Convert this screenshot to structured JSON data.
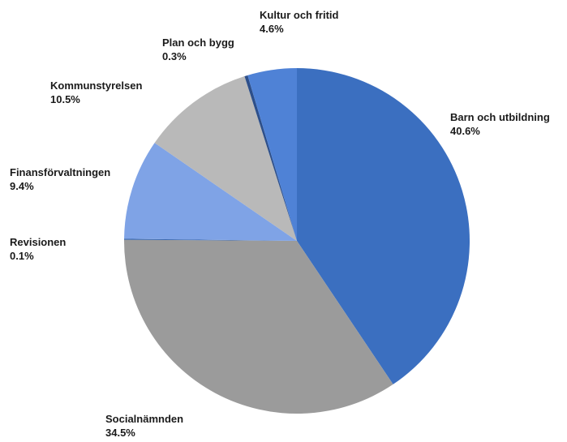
{
  "chart_data": {
    "type": "pie",
    "title": "",
    "start_angle_deg": 0,
    "direction": "clockwise",
    "slices": [
      {
        "label": "Barn och utbildning",
        "value": 40.6,
        "value_label": "40.6%",
        "color": "#3b6fc0"
      },
      {
        "label": "Socialnämnden",
        "value": 34.5,
        "value_label": "34.5%",
        "color": "#9b9b9b"
      },
      {
        "label": "Revisionen",
        "value": 0.1,
        "value_label": "0.1%",
        "color": "#2f5faa"
      },
      {
        "label": "Finansförvaltningen",
        "value": 9.4,
        "value_label": "9.4%",
        "color": "#7fa3e6"
      },
      {
        "label": "Kommunstyrelsen",
        "value": 10.5,
        "value_label": "10.5%",
        "color": "#b9b9b9"
      },
      {
        "label": "Plan och bygg",
        "value": 0.3,
        "value_label": "0.3%",
        "color": "#2d4f8a"
      },
      {
        "label": "Kultur och fritid",
        "value": 4.6,
        "value_label": "4.6%",
        "color": "#4f82d6"
      }
    ]
  }
}
